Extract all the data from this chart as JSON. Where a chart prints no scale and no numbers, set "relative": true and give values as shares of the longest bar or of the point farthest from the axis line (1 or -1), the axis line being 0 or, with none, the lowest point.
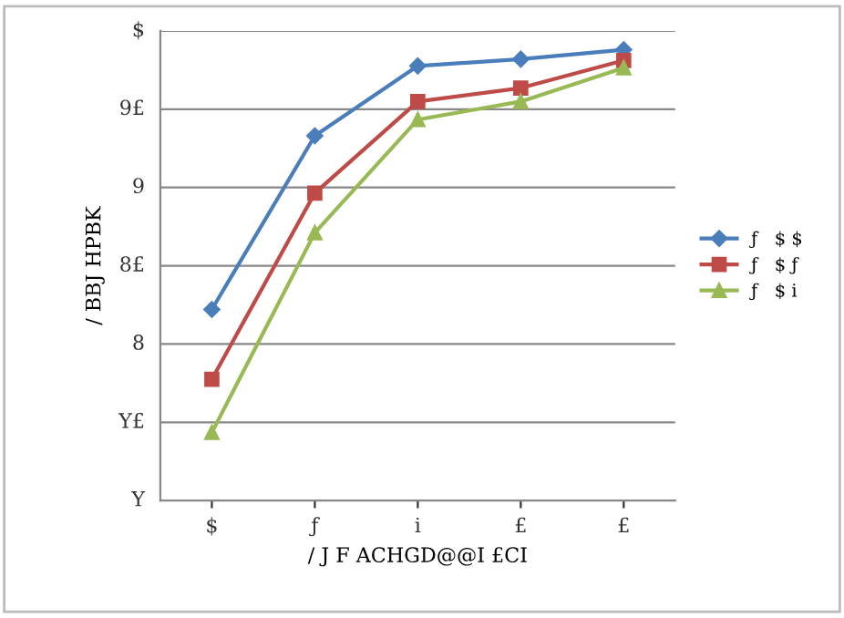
{
  "chart_data": {
    "type": "line",
    "xlabel": "/ J F ACHGD@@I £CI",
    "ylabel": "/ BBJ HPBK",
    "relative": true,
    "categories": [
      "$",
      "ƒ",
      "i",
      "£",
      "£"
    ],
    "series": [
      {
        "name": "ƒ   $ $",
        "color": "#4a7ebb",
        "marker": "diamond",
        "values": [
          0.424,
          0.809,
          0.964,
          0.979,
          1
        ]
      },
      {
        "name": "ƒ   $ ƒ",
        "color": "#be4b48",
        "marker": "square",
        "values": [
          0.269,
          0.682,
          0.885,
          0.915,
          0.976
        ]
      },
      {
        "name": "ƒ   $ i",
        "color": "#98b954",
        "marker": "triangle",
        "values": [
          0.151,
          0.594,
          0.845,
          0.885,
          0.96
        ]
      }
    ],
    "annotations": [
      "Y",
      "Y£",
      "8",
      "8£",
      "9",
      "9£",
      "$"
    ],
    "grid": "y",
    "legend": "right",
    "line_style": "solid"
  }
}
